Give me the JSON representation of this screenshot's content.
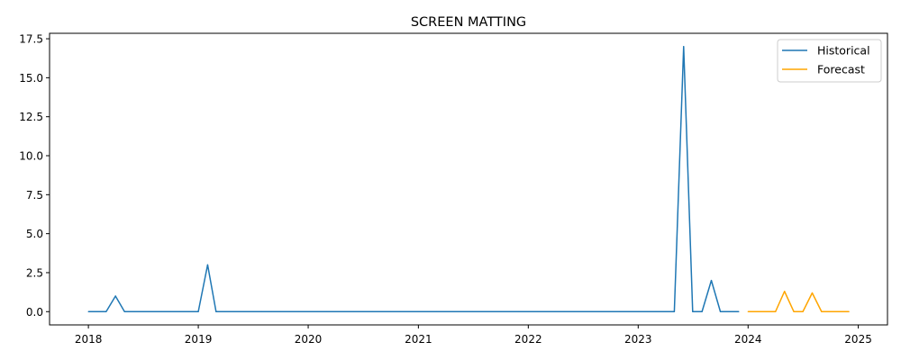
{
  "chart_data": {
    "type": "line",
    "title": "SCREEN MATTING",
    "xlabel": "",
    "ylabel": "",
    "x_ticks": [
      "2018",
      "2019",
      "2020",
      "2021",
      "2022",
      "2023",
      "2024",
      "2025"
    ],
    "y_ticks": [
      "0.0",
      "2.5",
      "5.0",
      "7.5",
      "10.0",
      "12.5",
      "15.0",
      "17.5"
    ],
    "xlim": [
      "2017-08-25",
      "2025-04-08"
    ],
    "ylim": [
      -0.85,
      17.85
    ],
    "grid": false,
    "legend_position": "top-right",
    "series": [
      {
        "name": "Historical",
        "color": "#1f77b4",
        "points": [
          [
            "2018-01-01",
            0
          ],
          [
            "2018-02-01",
            0
          ],
          [
            "2018-03-01",
            0
          ],
          [
            "2018-04-01",
            1
          ],
          [
            "2018-05-01",
            0
          ],
          [
            "2018-06-01",
            0
          ],
          [
            "2018-07-01",
            0
          ],
          [
            "2018-08-01",
            0
          ],
          [
            "2018-09-01",
            0
          ],
          [
            "2018-10-01",
            0
          ],
          [
            "2018-11-01",
            0
          ],
          [
            "2018-12-01",
            0
          ],
          [
            "2019-01-01",
            0
          ],
          [
            "2019-02-01",
            3
          ],
          [
            "2019-03-01",
            0
          ],
          [
            "2019-04-01",
            0
          ],
          [
            "2019-05-01",
            0
          ],
          [
            "2019-06-01",
            0
          ],
          [
            "2019-07-01",
            0
          ],
          [
            "2019-08-01",
            0
          ],
          [
            "2019-09-01",
            0
          ],
          [
            "2019-10-01",
            0
          ],
          [
            "2019-11-01",
            0
          ],
          [
            "2019-12-01",
            0
          ],
          [
            "2020-01-01",
            0
          ],
          [
            "2020-02-01",
            0
          ],
          [
            "2020-03-01",
            0
          ],
          [
            "2020-04-01",
            0
          ],
          [
            "2020-05-01",
            0
          ],
          [
            "2020-06-01",
            0
          ],
          [
            "2020-07-01",
            0
          ],
          [
            "2020-08-01",
            0
          ],
          [
            "2020-09-01",
            0
          ],
          [
            "2020-10-01",
            0
          ],
          [
            "2020-11-01",
            0
          ],
          [
            "2020-12-01",
            0
          ],
          [
            "2021-01-01",
            0
          ],
          [
            "2021-02-01",
            0
          ],
          [
            "2021-03-01",
            0
          ],
          [
            "2021-04-01",
            0
          ],
          [
            "2021-05-01",
            0
          ],
          [
            "2021-06-01",
            0
          ],
          [
            "2021-07-01",
            0
          ],
          [
            "2021-08-01",
            0
          ],
          [
            "2021-09-01",
            0
          ],
          [
            "2021-10-01",
            0
          ],
          [
            "2021-11-01",
            0
          ],
          [
            "2021-12-01",
            0
          ],
          [
            "2022-01-01",
            0
          ],
          [
            "2022-02-01",
            0
          ],
          [
            "2022-03-01",
            0
          ],
          [
            "2022-04-01",
            0
          ],
          [
            "2022-05-01",
            0
          ],
          [
            "2022-06-01",
            0
          ],
          [
            "2022-07-01",
            0
          ],
          [
            "2022-08-01",
            0
          ],
          [
            "2022-09-01",
            0
          ],
          [
            "2022-10-01",
            0
          ],
          [
            "2022-11-01",
            0
          ],
          [
            "2022-12-01",
            0
          ],
          [
            "2023-01-01",
            0
          ],
          [
            "2023-02-01",
            0
          ],
          [
            "2023-03-01",
            0
          ],
          [
            "2023-04-01",
            0
          ],
          [
            "2023-05-01",
            0
          ],
          [
            "2023-06-01",
            17
          ],
          [
            "2023-07-01",
            0
          ],
          [
            "2023-08-01",
            0
          ],
          [
            "2023-09-01",
            2
          ],
          [
            "2023-10-01",
            0
          ],
          [
            "2023-11-01",
            0
          ],
          [
            "2023-12-01",
            0
          ]
        ]
      },
      {
        "name": "Forecast",
        "color": "#ffa500",
        "points": [
          [
            "2024-01-01",
            0
          ],
          [
            "2024-02-01",
            0
          ],
          [
            "2024-03-01",
            0
          ],
          [
            "2024-04-01",
            0
          ],
          [
            "2024-05-01",
            1.3
          ],
          [
            "2024-06-01",
            0
          ],
          [
            "2024-07-01",
            0
          ],
          [
            "2024-08-01",
            1.2
          ],
          [
            "2024-09-01",
            0
          ],
          [
            "2024-10-01",
            0
          ],
          [
            "2024-11-01",
            0
          ],
          [
            "2024-12-01",
            0
          ]
        ]
      }
    ]
  }
}
